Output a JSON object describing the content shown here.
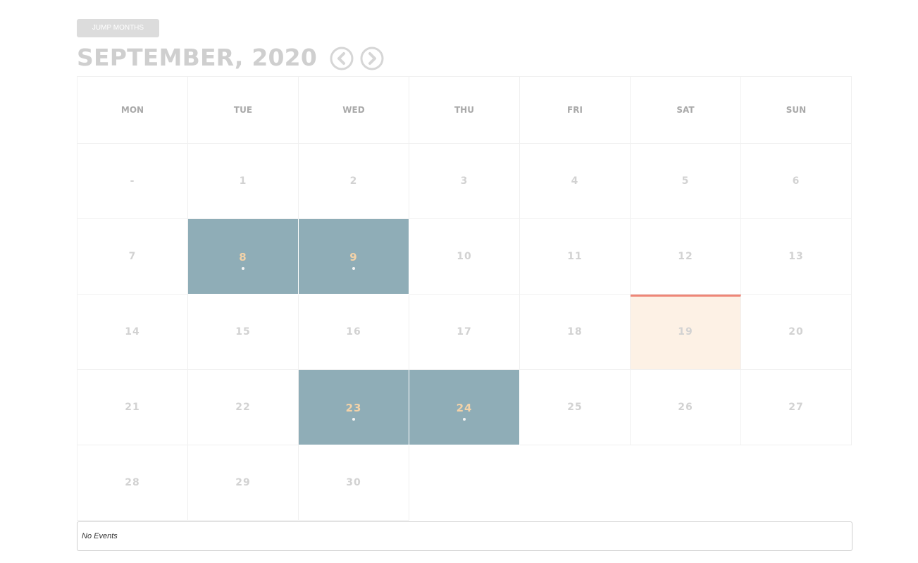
{
  "header": {
    "jump_label": "JUMP MONTHS",
    "title": "SEPTEMBER, 2020",
    "prev_icon": "chevron-left-circle",
    "next_icon": "chevron-right-circle"
  },
  "weekdays": [
    "MON",
    "TUE",
    "WED",
    "THU",
    "FRI",
    "SAT",
    "SUN"
  ],
  "weeks": [
    [
      "-",
      "1",
      "2",
      "3",
      "4",
      "5",
      "6"
    ],
    [
      "7",
      "8",
      "9",
      "10",
      "11",
      "12",
      "13"
    ],
    [
      "14",
      "15",
      "16",
      "17",
      "18",
      "19",
      "20"
    ],
    [
      "21",
      "22",
      "23",
      "24",
      "25",
      "26",
      "27"
    ],
    [
      "28",
      "29",
      "30",
      "",
      "",
      "",
      ""
    ]
  ],
  "event_days": [
    "8",
    "9",
    "23",
    "24"
  ],
  "today": "19",
  "events_panel": {
    "text": "No Events"
  },
  "colors": {
    "event_bg": "#8fadb7",
    "event_text": "#f3d2a8",
    "today_bg": "#fdf1e5",
    "today_border": "#ee8677",
    "title": "#cfcfcf"
  }
}
